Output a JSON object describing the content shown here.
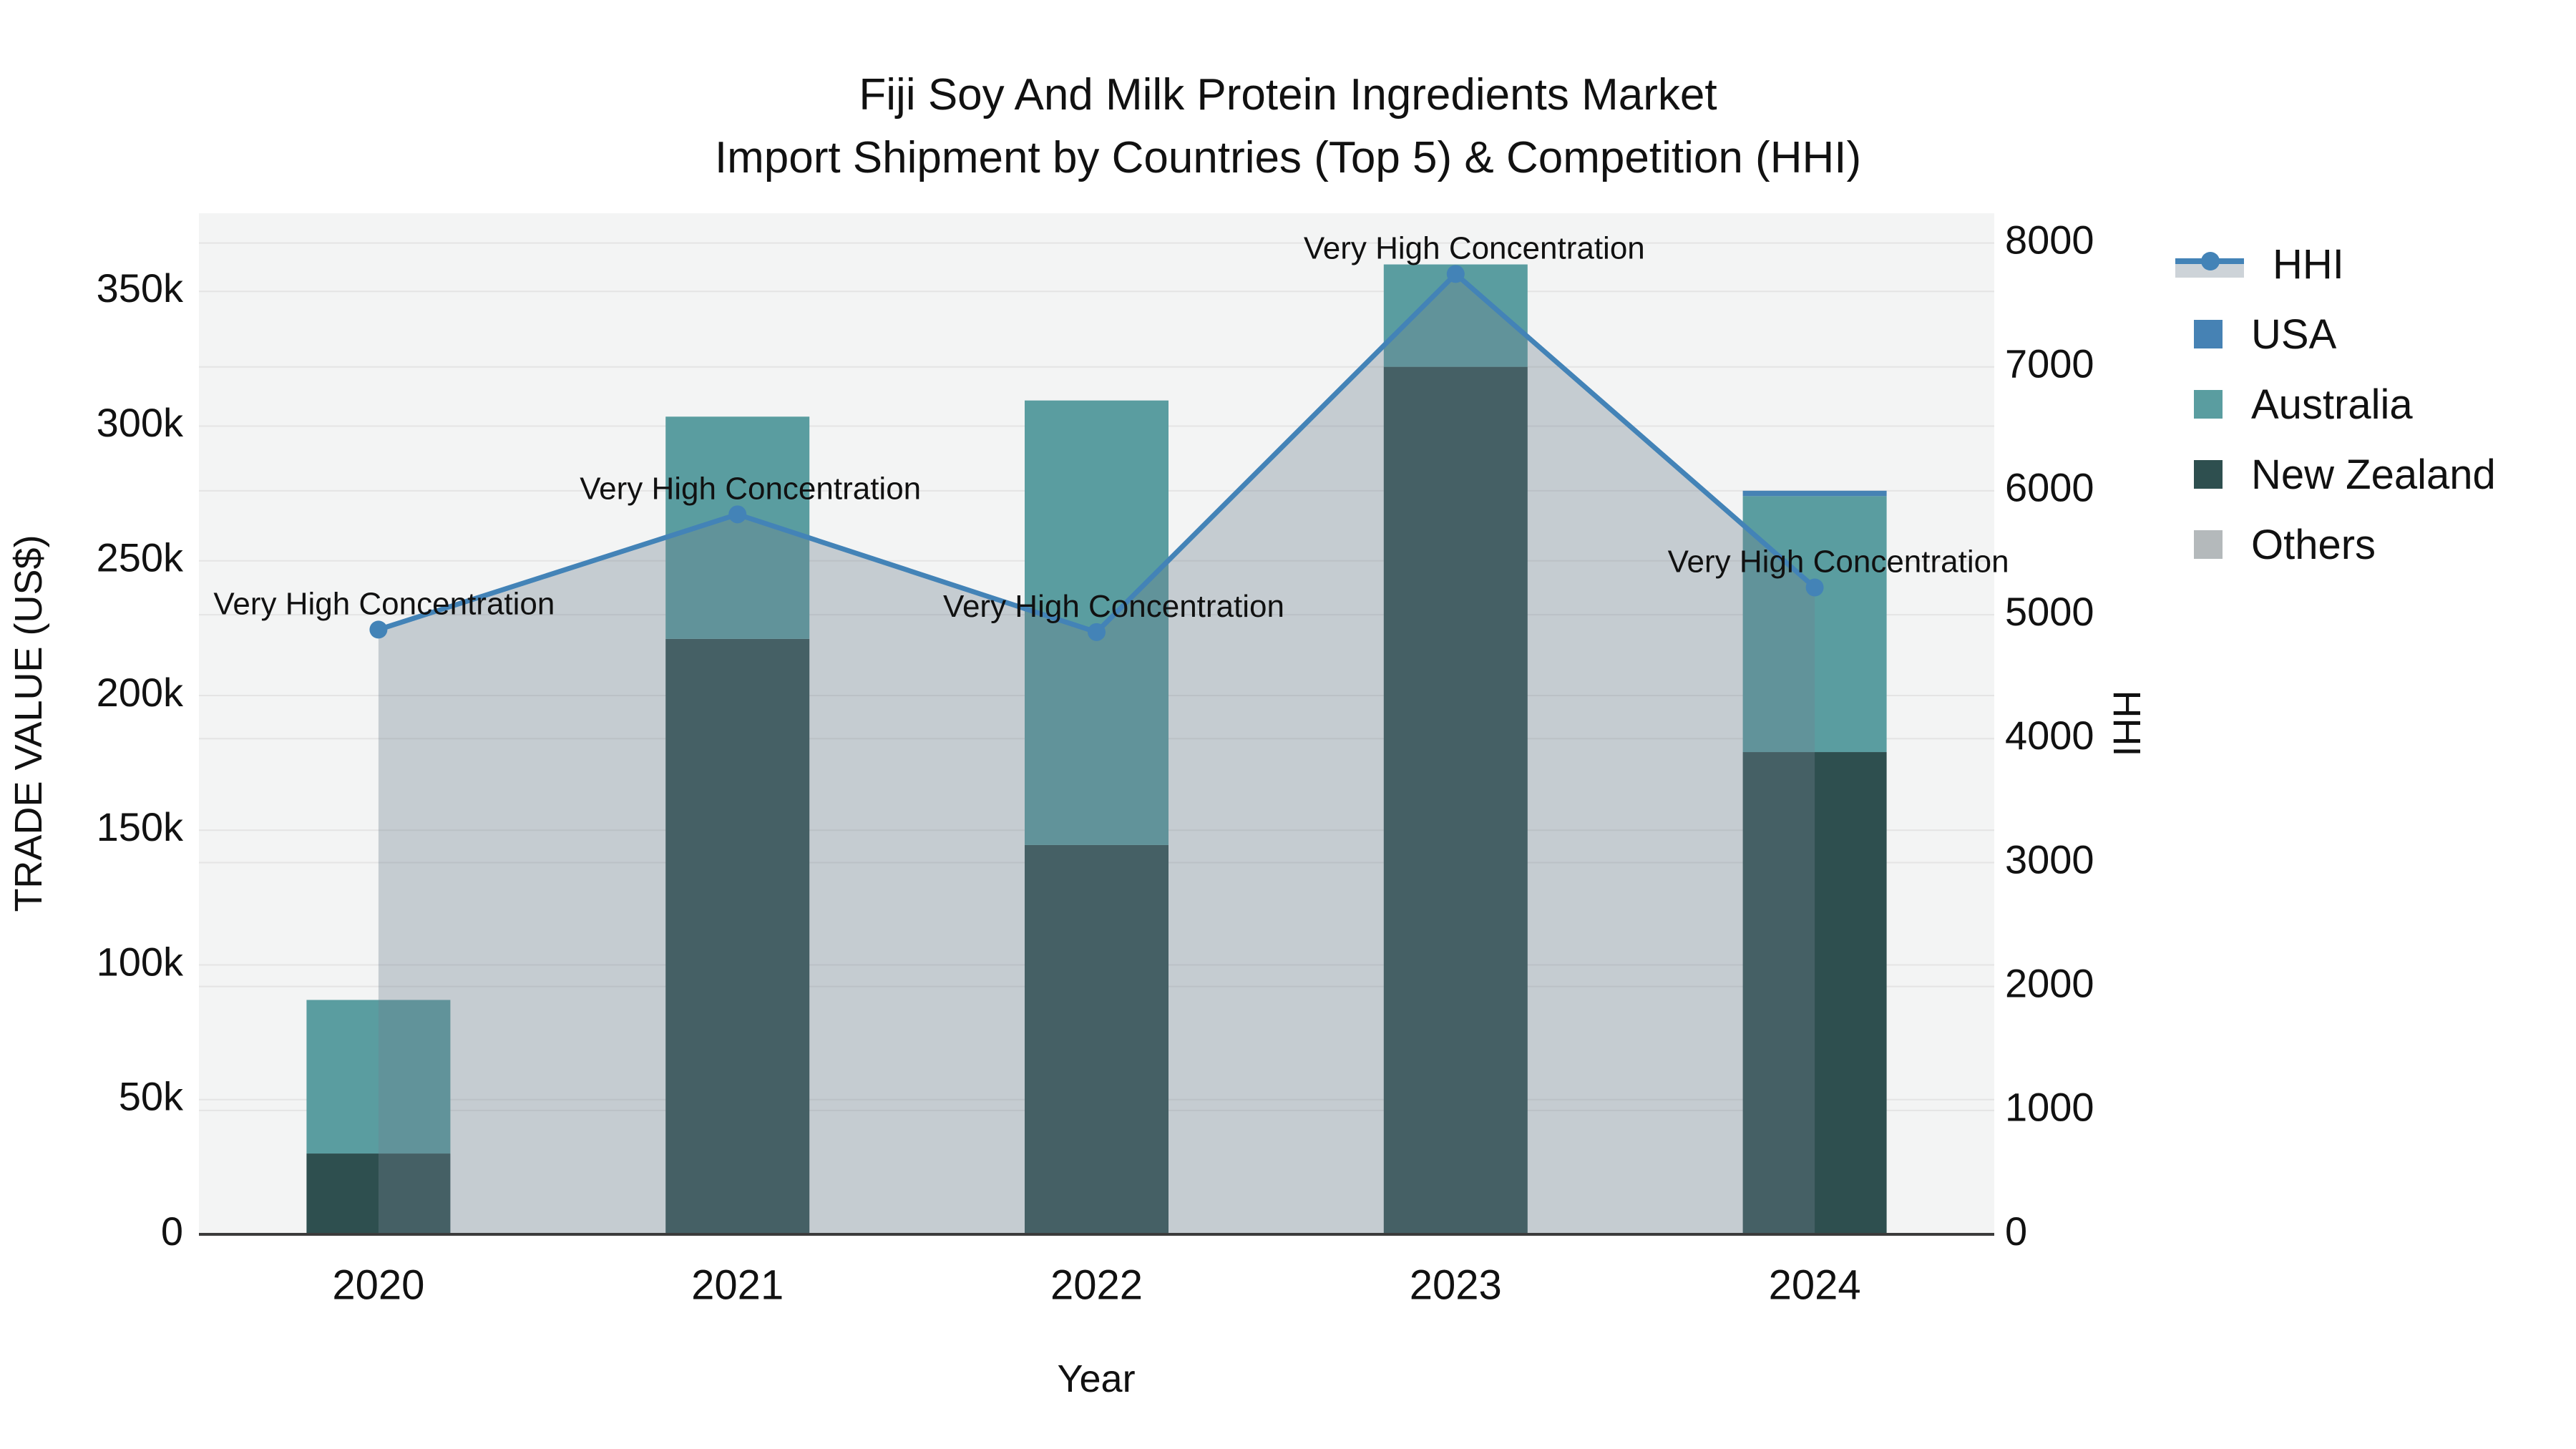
{
  "title": {
    "line1": "Fiji Soy And Milk Protein Ingredients Market",
    "line2": "Import Shipment by Countries (Top 5) & Competition (HHI)"
  },
  "axes": {
    "x_title": "Year",
    "y_left_title": "TRADE VALUE (US$)",
    "y_right_title": "HHI"
  },
  "legend": {
    "position": "right",
    "items": [
      {
        "label": "HHI",
        "type": "line",
        "color": "#4383B7"
      },
      {
        "label": "USA",
        "type": "swatch",
        "color": "#4682B4"
      },
      {
        "label": "Australia",
        "type": "swatch",
        "color": "#5A9DA0"
      },
      {
        "label": "New Zealand",
        "type": "swatch",
        "color": "#2E4F4F"
      },
      {
        "label": "Others",
        "type": "swatch",
        "color": "#B4B9BB"
      }
    ]
  },
  "colors": {
    "plot_background": "#F3F4F4",
    "gridline": "#E4E4E4",
    "axis_line": "#3B3B3B",
    "text": "#111111",
    "hhi_line": "#4383B7",
    "hhi_area_fill": "rgba(112,128,144,0.35)"
  },
  "chart_data": {
    "type": "bar",
    "stacked": true,
    "title": "Fiji Soy And Milk Protein Ingredients Market — Import Shipment by Countries (Top 5) & Competition (HHI)",
    "xlabel": "Year",
    "ylabel_left": "TRADE VALUE (US$)",
    "ylabel_right": "HHI",
    "categories": [
      "2020",
      "2021",
      "2022",
      "2023",
      "2024"
    ],
    "series": [
      {
        "name": "USA",
        "color": "#4682B4",
        "values": [
          0,
          0,
          0,
          0,
          2000
        ]
      },
      {
        "name": "Australia",
        "color": "#5A9DA0",
        "values": [
          57000,
          82500,
          165000,
          38000,
          95000
        ]
      },
      {
        "name": "New Zealand",
        "color": "#2E4F4F",
        "values": [
          30000,
          221000,
          144500,
          322000,
          179000
        ]
      },
      {
        "name": "Others",
        "color": "#B4B9BB",
        "values": [
          0,
          0,
          0,
          0,
          0
        ]
      }
    ],
    "stack_order": [
      "New Zealand",
      "Australia",
      "USA",
      "Others"
    ],
    "line_overlay": {
      "name": "HHI",
      "axis": "right",
      "color": "#4383B7",
      "area_fill": "rgba(112,128,144,0.35)",
      "values": [
        4880,
        5810,
        4860,
        7750,
        5220
      ]
    },
    "annotations": [
      {
        "text": "Very High Concentration",
        "dx": 8
      },
      {
        "text": "Very High Concentration",
        "dx": 18
      },
      {
        "text": "Very High Concentration",
        "dx": 24
      },
      {
        "text": "Very High Concentration",
        "dx": 26
      },
      {
        "text": "Very High Concentration",
        "dx": 33
      }
    ],
    "ylim_left": [
      0,
      379000
    ],
    "ylim_right": [
      0,
      8240
    ],
    "left_ticks": [
      {
        "value": 0,
        "label": "0"
      },
      {
        "value": 50000,
        "label": "50k"
      },
      {
        "value": 100000,
        "label": "100k"
      },
      {
        "value": 150000,
        "label": "150k"
      },
      {
        "value": 200000,
        "label": "200k"
      },
      {
        "value": 250000,
        "label": "250k"
      },
      {
        "value": 300000,
        "label": "300k"
      },
      {
        "value": 350000,
        "label": "350k"
      }
    ],
    "right_ticks": [
      {
        "value": 0,
        "label": "0"
      },
      {
        "value": 1000,
        "label": "1000"
      },
      {
        "value": 2000,
        "label": "2000"
      },
      {
        "value": 3000,
        "label": "3000"
      },
      {
        "value": 4000,
        "label": "4000"
      },
      {
        "value": 5000,
        "label": "5000"
      },
      {
        "value": 6000,
        "label": "6000"
      },
      {
        "value": 7000,
        "label": "7000"
      },
      {
        "value": 8000,
        "label": "8000"
      }
    ],
    "grid": true,
    "legend_position": "right"
  }
}
